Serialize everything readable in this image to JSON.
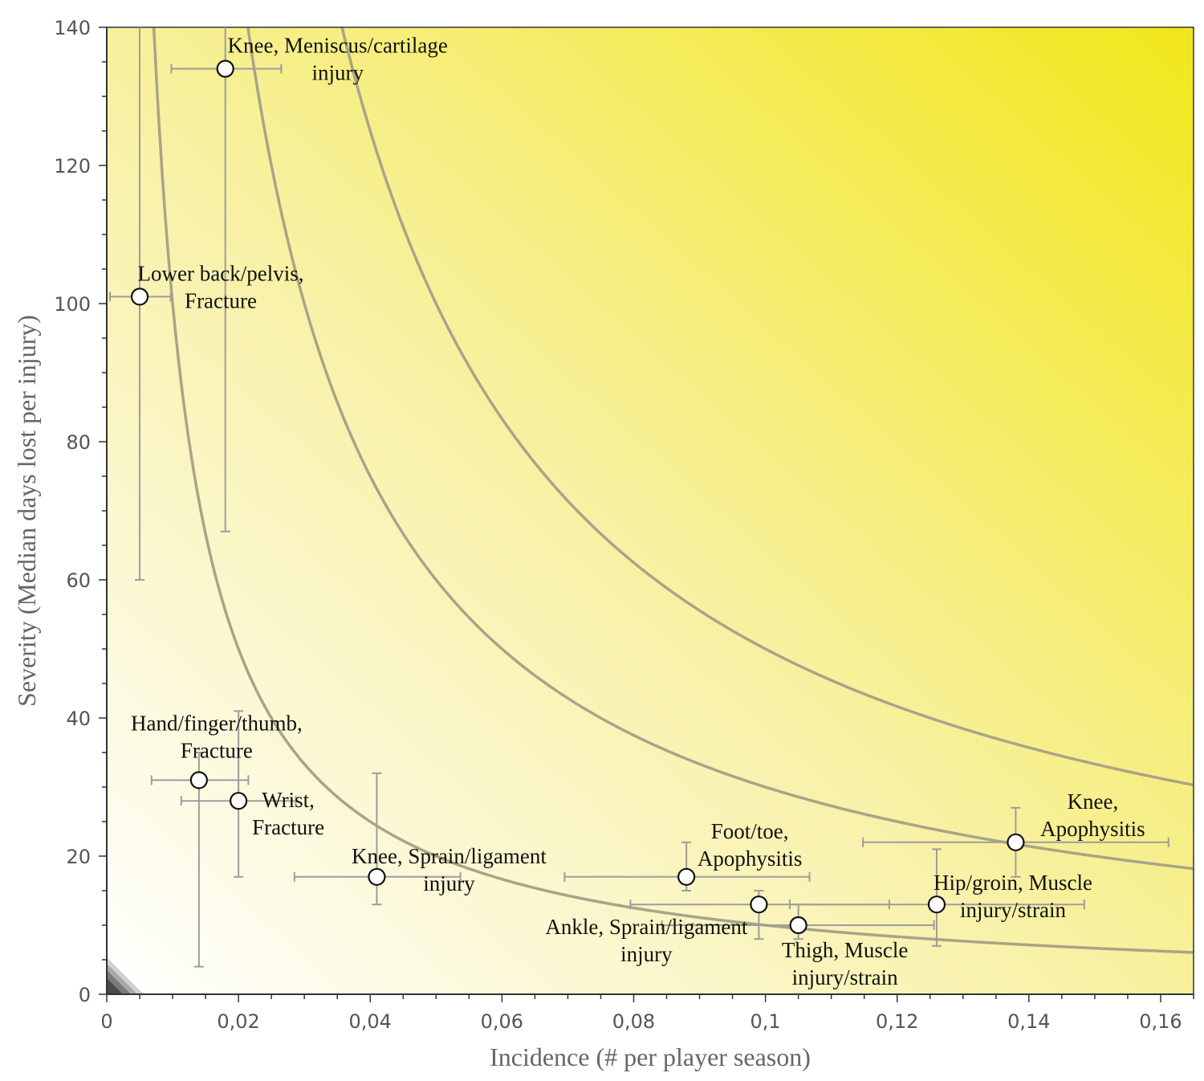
{
  "chart_data": {
    "type": "scatter",
    "title": "",
    "xlabel": "Incidence (# per player season)",
    "ylabel": "Severity (Median days lost per injury)",
    "xlim": [
      0,
      0.165
    ],
    "ylim": [
      0,
      140
    ],
    "x_ticks": [
      0,
      0.02,
      0.04,
      0.06,
      0.08,
      0.1,
      0.12,
      0.14,
      0.16
    ],
    "x_tick_labels": [
      "0",
      "0,02",
      "0,04",
      "0,06",
      "0,08",
      "0,1",
      "0,12",
      "0,14",
      "0,16"
    ],
    "y_ticks": [
      0,
      20,
      40,
      60,
      80,
      100,
      120,
      140
    ],
    "y_tick_labels": [
      "0",
      "20",
      "40",
      "60",
      "80",
      "100",
      "120",
      "140"
    ],
    "background": "gradient from white (bottom-left) to yellow (top-right)",
    "grid": false,
    "iso_burden_curves": [
      {
        "burden": 1.0
      },
      {
        "burden": 3.0
      },
      {
        "burden": 5.0
      }
    ],
    "points": [
      {
        "label": [
          "Knee, Meniscus/cartilage",
          "injury"
        ],
        "x": 0.018,
        "y": 134,
        "x_err": [
          0.0098,
          0.0265
        ],
        "y_err": [
          67,
          140
        ]
      },
      {
        "label": [
          "Lower back/pelvis,",
          "Fracture"
        ],
        "x": 0.005,
        "y": 101,
        "x_err": [
          0.0005,
          0.0097
        ],
        "y_err": [
          60,
          140
        ]
      },
      {
        "label": [
          "Hand/finger/thumb,",
          "Fracture"
        ],
        "x": 0.014,
        "y": 31,
        "x_err": [
          0.0068,
          0.0215
        ],
        "y_err": [
          4,
          35
        ]
      },
      {
        "label": [
          "Wrist,",
          "Fracture"
        ],
        "x": 0.02,
        "y": 28,
        "x_err": [
          0.0113,
          0.0287
        ],
        "y_err": [
          17,
          41
        ]
      },
      {
        "label": [
          "Knee, Sprain/ligament",
          "injury"
        ],
        "x": 0.041,
        "y": 17,
        "x_err": [
          0.0285,
          0.0537
        ],
        "y_err": [
          13,
          32
        ]
      },
      {
        "label": [
          "Foot/toe,",
          "Apophysitis"
        ],
        "x": 0.088,
        "y": 17,
        "x_err": [
          0.0695,
          0.1067
        ],
        "y_err": [
          15,
          22
        ]
      },
      {
        "label": [
          "Ankle, Sprain/ligament",
          "injury"
        ],
        "x": 0.099,
        "y": 13,
        "x_err": [
          0.0795,
          0.1188
        ],
        "y_err": [
          8,
          15
        ]
      },
      {
        "label": [
          "Thigh, Muscle",
          "injury/strain"
        ],
        "x": 0.105,
        "y": 10,
        "x_err": [
          0.0843,
          0.1256
        ],
        "y_err": [
          8,
          13
        ]
      },
      {
        "label": [
          "Hip/groin, Muscle",
          "injury/strain"
        ],
        "x": 0.126,
        "y": 13,
        "x_err": [
          0.1037,
          0.1484
        ],
        "y_err": [
          7,
          21
        ]
      },
      {
        "label": [
          "Knee,",
          "Apophysitis"
        ],
        "x": 0.138,
        "y": 22,
        "x_err": [
          0.1148,
          0.1612
        ],
        "y_err": [
          17,
          27
        ]
      }
    ],
    "colors": {
      "gradient_low": "#ffffff",
      "gradient_high": "#f2e71a",
      "curve": "#a9a487",
      "error_bar": "#9d9d9d"
    }
  }
}
